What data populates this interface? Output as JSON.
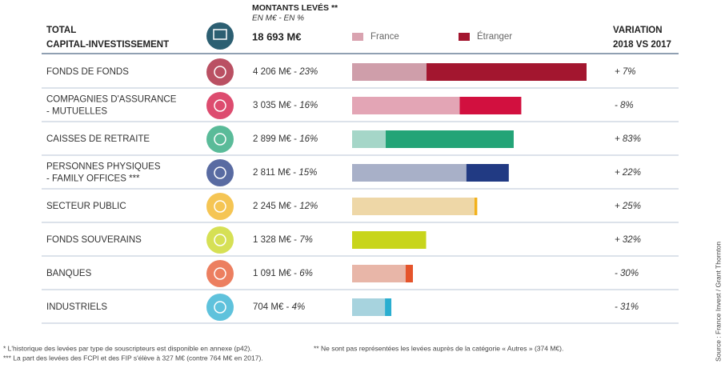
{
  "header": {
    "total": [
      "TOTAL",
      "CAPITAL-INVESTISSEMENT"
    ],
    "amount_title": "MONTANTS LEVÉS **",
    "amount_units": "EN M€  -  EN %",
    "total_amount": "18 693 M€",
    "variation": [
      "VARIATION",
      "2018 VS 2017"
    ]
  },
  "legend": [
    {
      "name": "France",
      "color": "#d9a3b0"
    },
    {
      "name": "Étranger",
      "color": "#a3162f"
    }
  ],
  "rows": [
    {
      "label": [
        "FONDS DE FONDS"
      ],
      "amount": "4 206 M€",
      "share": "23%",
      "variation": "+ 7%",
      "france": 1335,
      "foreign": 2871,
      "colors": [
        "#cf9eaa",
        "#a3162f"
      ]
    },
    {
      "label": [
        "COMPAGNIES D'ASSURANCE",
        "- MUTUELLES"
      ],
      "amount": "3 035 M€",
      "share": "16%",
      "variation": "- 8%",
      "france": 1930,
      "foreign": 1105,
      "colors": [
        "#e3a5b5",
        "#d2103f"
      ]
    },
    {
      "label": [
        "CAISSES DE RETRAITE"
      ],
      "amount": "2 899 M€",
      "share": "16%",
      "variation": "+ 83%",
      "france": 603,
      "foreign": 2296,
      "colors": [
        "#a5d6c8",
        "#23a477"
      ]
    },
    {
      "label": [
        "PERSONNES PHYSIQUES",
        "- FAMILY OFFICES ***"
      ],
      "amount": "2 811 M€",
      "share": "15%",
      "variation": "+ 22%",
      "france": 2050,
      "foreign": 761,
      "colors": [
        "#a8b0c8",
        "#213a83"
      ]
    },
    {
      "label": [
        "SECTEUR PUBLIC"
      ],
      "amount": "2 245 M€",
      "share": "12%",
      "variation": "+ 25%",
      "france": 2195,
      "foreign": 50,
      "colors": [
        "#eed7a7",
        "#f2b11b"
      ]
    },
    {
      "label": [
        "FONDS SOUVERAINS"
      ],
      "amount": "1 328 M€",
      "share": "7%",
      "variation": "+ 32%",
      "france": 1328,
      "foreign": 0,
      "colors": [
        "#c8d51c",
        "#c8d51c"
      ]
    },
    {
      "label": [
        "BANQUES"
      ],
      "amount": "1 091 M€",
      "share": "6%",
      "variation": "- 30%",
      "france": 960,
      "foreign": 131,
      "colors": [
        "#e8b6a8",
        "#e5542b"
      ]
    },
    {
      "label": [
        "INDUSTRIELS"
      ],
      "amount": "704 M€",
      "share": "4%",
      "variation": "- 31%",
      "france": 590,
      "foreign": 114,
      "colors": [
        "#a7d3de",
        "#2aaed0"
      ]
    }
  ],
  "footnotes": [
    "* L'historique des levées par type de souscripteurs est disponible en annexe (p42).",
    "** Ne sont pas représentées les levées auprès de la catégorie « Autres » (374 M€).",
    "*** La part des levées des FCPI et des FIP s'élève à 327 M€ (contre 764 M€ en 2017)."
  ],
  "source": "Source : France Invest / Grant Thornton"
}
